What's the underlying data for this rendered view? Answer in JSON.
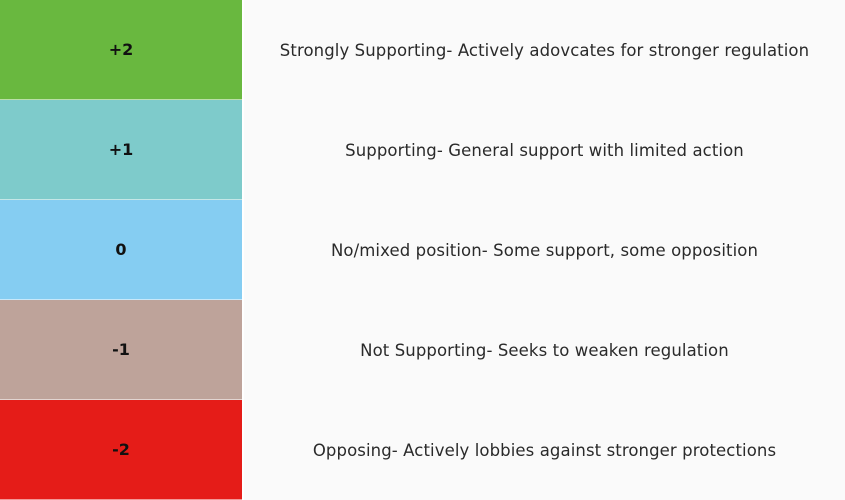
{
  "rows": [
    {
      "score": "+2",
      "description": "Strongly Supporting- Actively adovcates for stronger regulation",
      "color": "#69b83f"
    },
    {
      "score": "+1",
      "description": "Supporting- General support with limited action",
      "color": "#7ecbcb"
    },
    {
      "score": "0",
      "description": "No/mixed position- Some support, some opposition",
      "color": "#85cdf2"
    },
    {
      "score": "-1",
      "description": "Not Supporting- Seeks to weaken regulation",
      "color": "#bea39a"
    },
    {
      "score": "-2",
      "description": "Opposing- Actively lobbies against stronger protections",
      "color": "#e51c18"
    }
  ]
}
